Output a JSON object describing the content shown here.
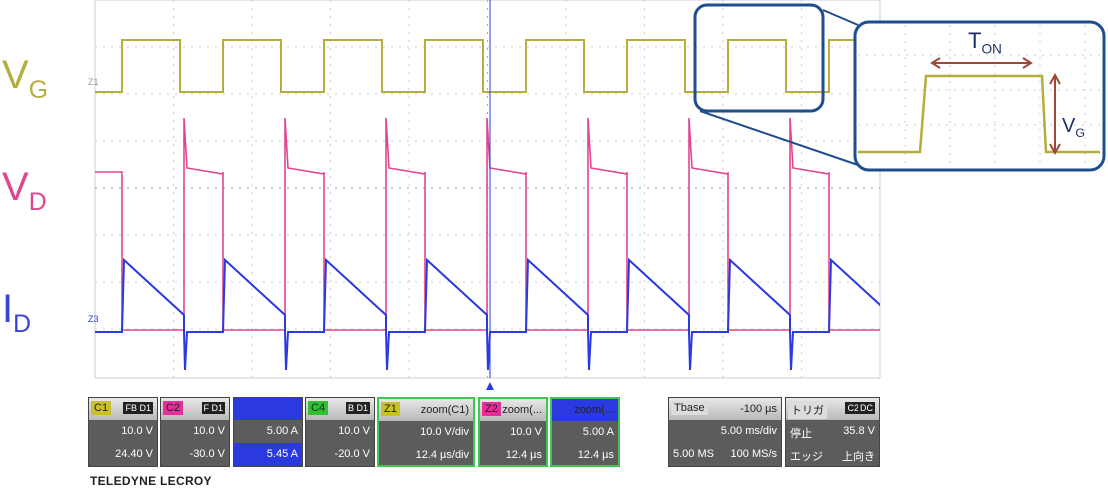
{
  "trace_labels": [
    {
      "main": "V",
      "sub": "G",
      "color": "#b5ad3c"
    },
    {
      "main": "V",
      "sub": "D",
      "color": "#e0458f"
    },
    {
      "main": "I",
      "sub": "D",
      "color": "#3a44d6"
    }
  ],
  "trace_markers": [
    "Z1",
    "Z3"
  ],
  "inset": {
    "width_label": {
      "main": "T",
      "sub": "ON"
    },
    "height_label": {
      "main": "V",
      "sub": "G"
    }
  },
  "channels": [
    {
      "name": "C1",
      "color": "#c8c030",
      "tags": [
        "FB",
        "D1"
      ],
      "rows": [
        [
          "10.0 V"
        ],
        [
          "24.40 V"
        ]
      ]
    },
    {
      "name": "C2",
      "color": "#e0309a",
      "tags": [
        "F",
        "D1"
      ],
      "rows": [
        [
          "10.0 V"
        ],
        [
          "-30.0 V"
        ]
      ]
    },
    {
      "color": "#2a3ae0",
      "rows": [
        [
          "5.00 A"
        ],
        [
          "5.45 A"
        ]
      ]
    },
    {
      "name": "C4",
      "color": "#30c030",
      "tags": [
        "B",
        "D1"
      ],
      "rows": [
        [
          "10.0 V"
        ],
        [
          "-20.0 V"
        ]
      ]
    },
    {
      "name": "Z1",
      "color": "#c8c030",
      "header_value": "zoom(C1)",
      "rows": [
        [
          "10.0 V/div"
        ],
        [
          "12.4 µs/div"
        ]
      ]
    },
    {
      "name": "Z2",
      "color": "#e0309a",
      "header_value": "zoom(...",
      "rows": [
        [
          "10.0 V"
        ],
        [
          "12.4 µs"
        ]
      ]
    },
    {
      "color": "#2a3ae0",
      "header_value": "zoom(...",
      "rows": [
        [
          "5.00 A"
        ],
        [
          "12.4 µs"
        ]
      ]
    },
    {
      "name": "Tbase",
      "color": "#dcdcdc",
      "header_value": "-100 µs",
      "rows": [
        [
          "5.00 ms/div"
        ],
        [
          "5.00 MS",
          "100 MS/s"
        ]
      ]
    },
    {
      "name": "トリガ",
      "color": "#dcdcdc",
      "tags": [
        "C2",
        "DC"
      ],
      "rows": [
        [
          "停止",
          "35.8 V"
        ],
        [
          "エッジ",
          "上向き"
        ]
      ]
    }
  ],
  "brand": "TELEDYNE LECROY"
}
